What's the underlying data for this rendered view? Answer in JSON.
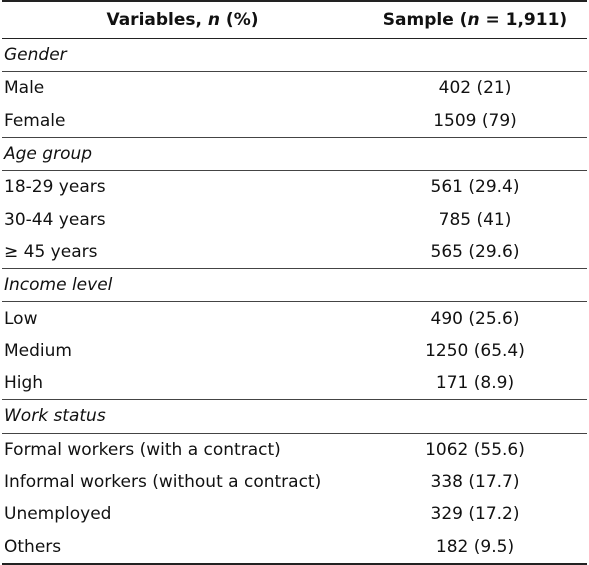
{
  "table": {
    "header": [
      [
        "Variables, ",
        "n",
        " (%)"
      ],
      [
        "Sample (",
        "n",
        " = 1,911)"
      ]
    ],
    "sections": [
      {
        "title": "Gender",
        "rows": [
          [
            "Male",
            "402 (21)"
          ],
          [
            "Female",
            "1509 (79)"
          ]
        ]
      },
      {
        "title": "Age group",
        "rows": [
          [
            "18-29 years",
            "561 (29.4)"
          ],
          [
            "30-44 years",
            "785 (41)"
          ],
          [
            "≥ 45 years",
            "565 (29.6)"
          ]
        ]
      },
      {
        "title": "Income level",
        "rows": [
          [
            "Low",
            "490 (25.6)"
          ],
          [
            "Medium",
            "1250 (65.4)"
          ],
          [
            "High",
            "171 (8.9)"
          ]
        ]
      },
      {
        "title": "Work status",
        "rows": [
          [
            "Formal workers (with a contract)",
            "1062 (55.6)"
          ],
          [
            "Informal workers (without a contract)",
            "338 (17.7)"
          ],
          [
            "Unemployed",
            "329 (17.2)"
          ],
          [
            "Others",
            "182 (9.5)"
          ]
        ]
      }
    ]
  }
}
